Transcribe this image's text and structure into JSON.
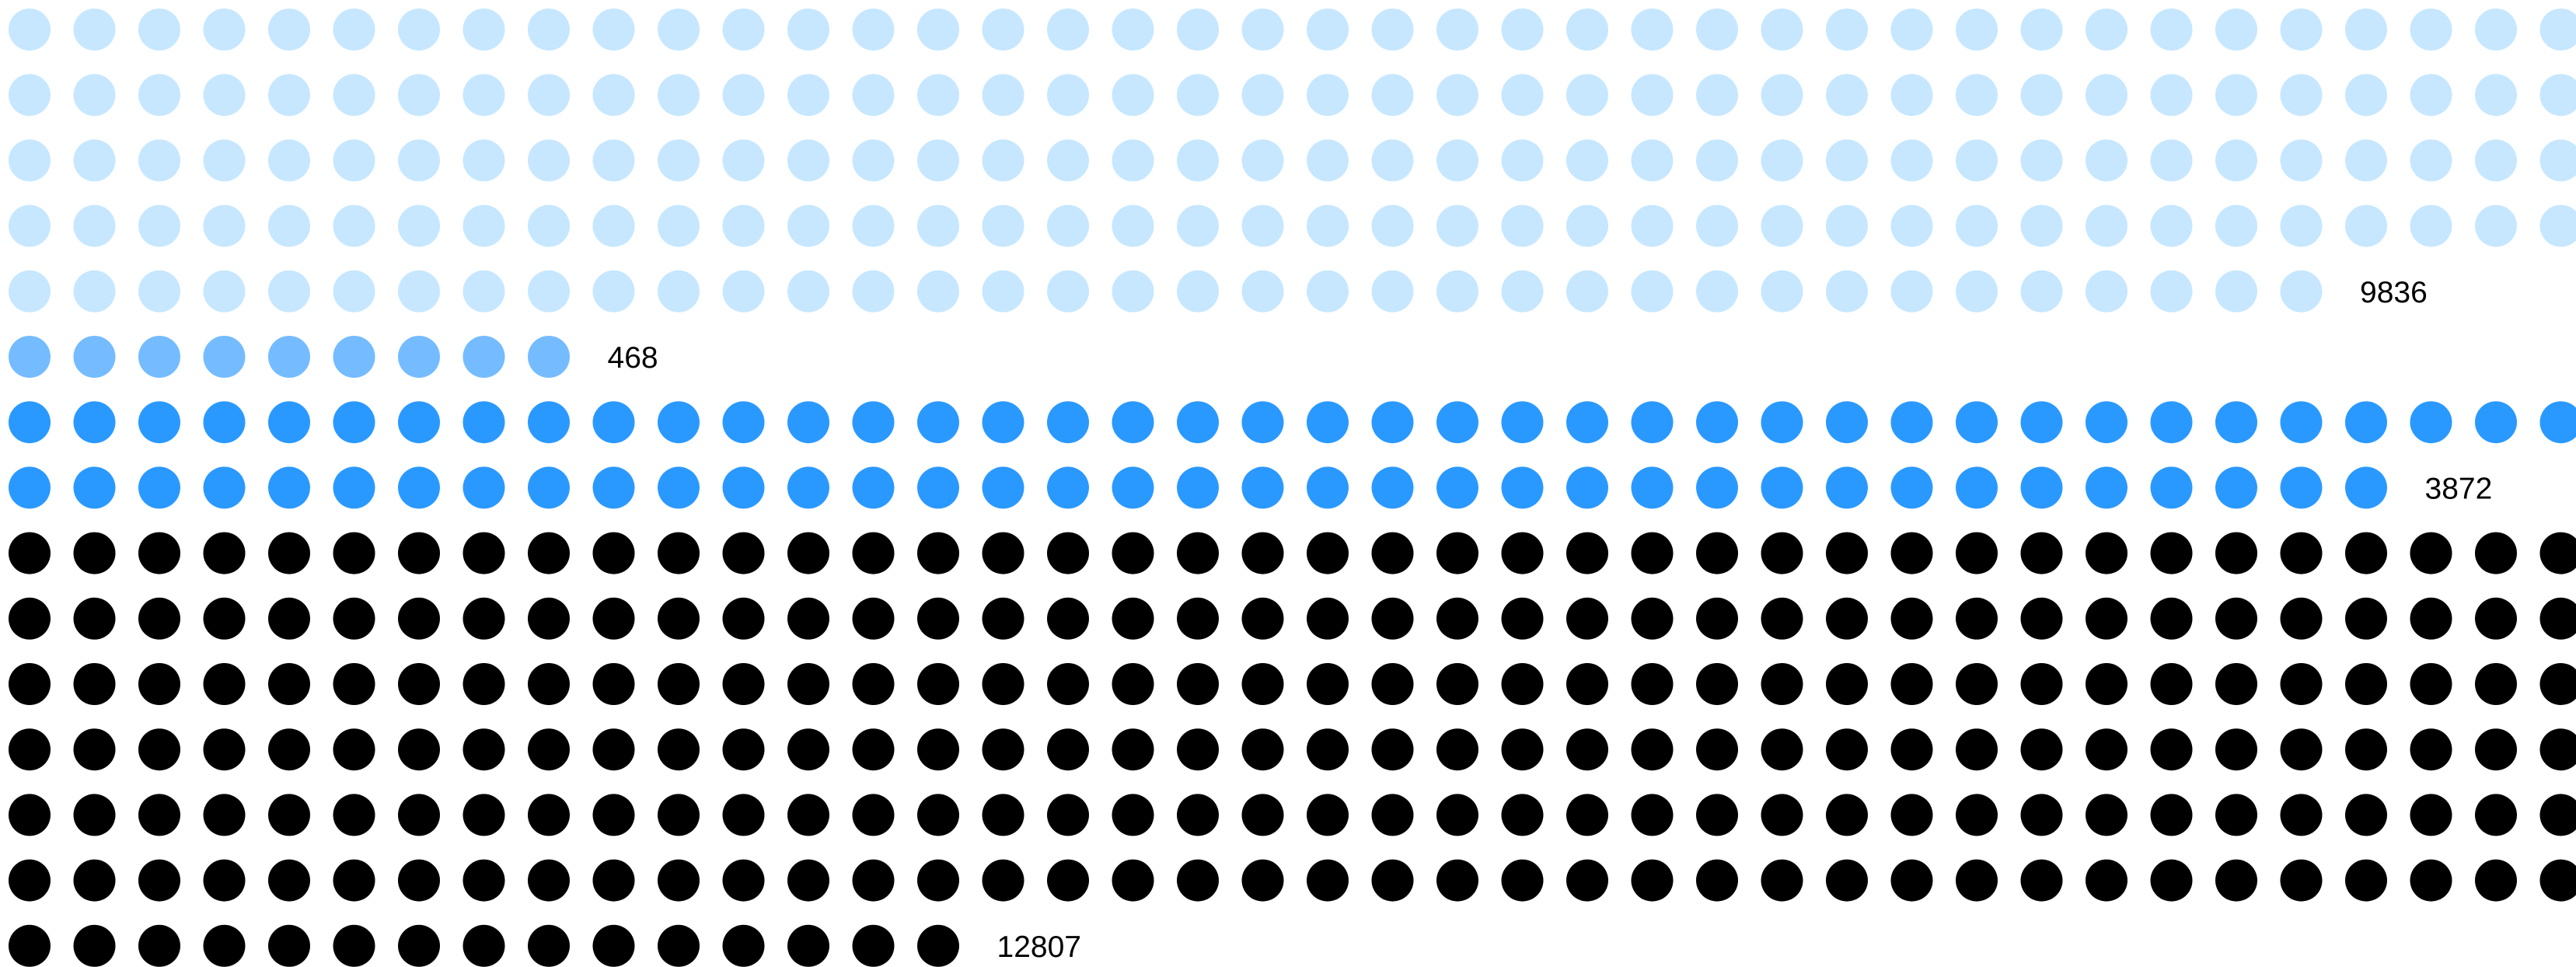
{
  "chart_data": {
    "type": "waffle",
    "groups": [
      {
        "value": 9836,
        "label": "9836",
        "color": "#c6e7ff",
        "dots": 196
      },
      {
        "value": 468,
        "label": "468",
        "color": "#74bcff",
        "dots": 9
      },
      {
        "value": 3872,
        "label": "3872",
        "color": "#2a99ff",
        "dots": 77
      },
      {
        "value": 12807,
        "label": "12807",
        "color": "#000000",
        "dots": 255
      }
    ]
  }
}
